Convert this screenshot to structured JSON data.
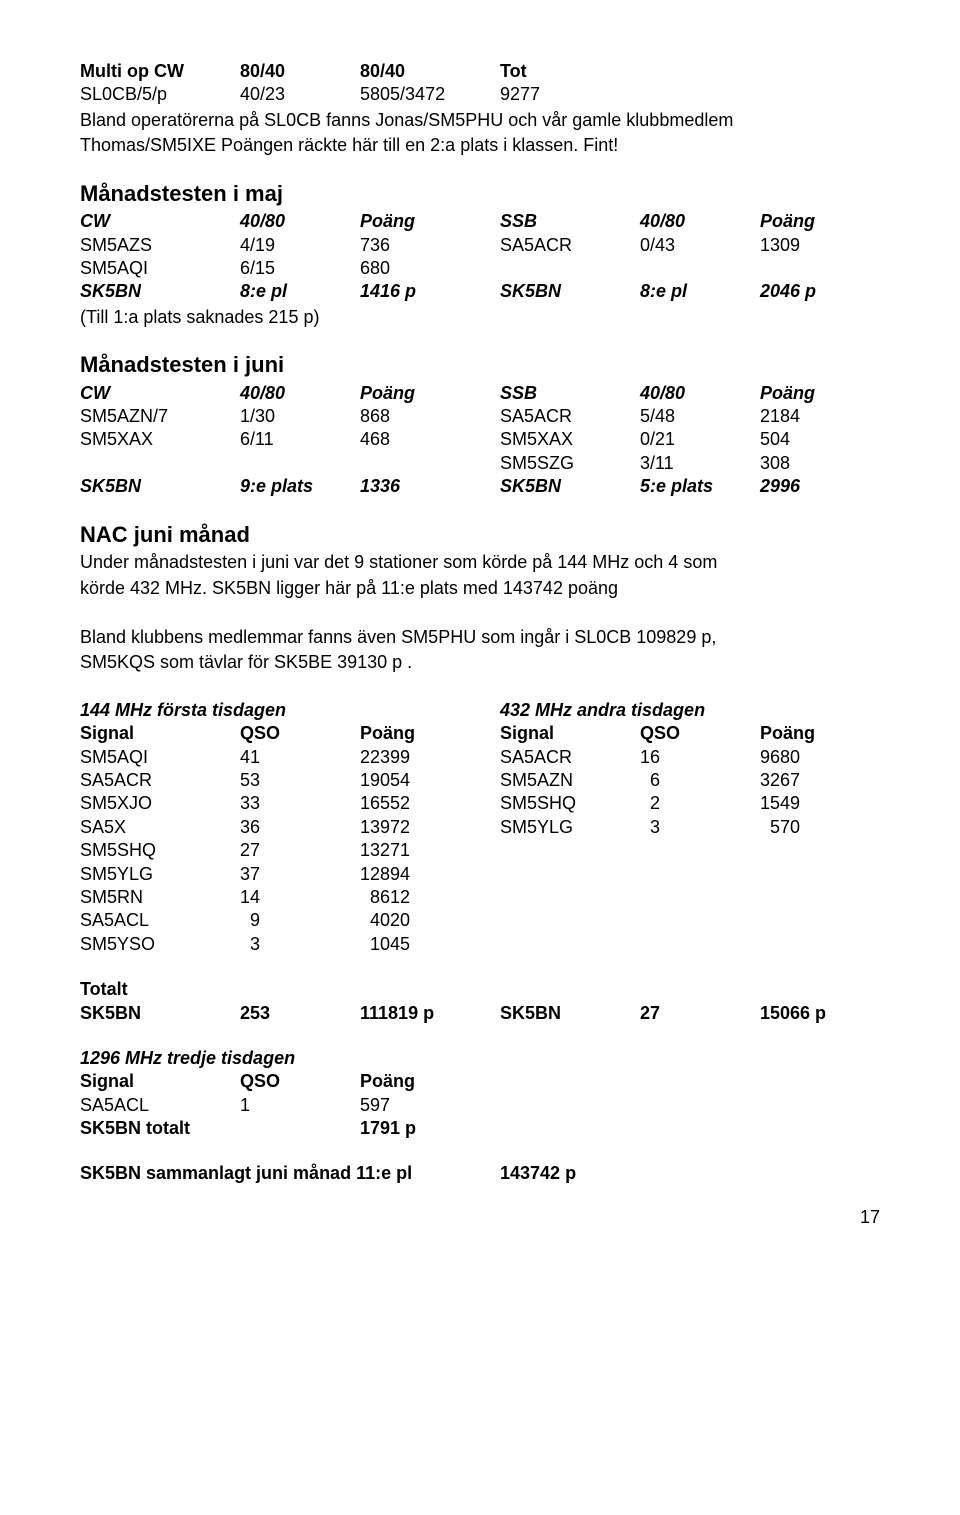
{
  "topHeader": {
    "a": "Multi op CW",
    "b": "80/40",
    "c": "80/40",
    "d": "Tot"
  },
  "topRow": {
    "a": "SL0CB/5/p",
    "b": "40/23",
    "c": "5805/3472",
    "d": "9277"
  },
  "intro1": "Bland operatörerna på SL0CB fanns Jonas/SM5PHU och vår gamle klubbmedlem",
  "intro2": "Thomas/SM5IXE Poängen räckte här till en 2:a plats i klassen. Fint!",
  "maj": {
    "title": "Månadstesten i maj",
    "hdr": {
      "a": "CW",
      "b": "40/80",
      "c": "Poäng",
      "d": "SSB",
      "e": "40/80",
      "f": "Poäng"
    },
    "r1": {
      "a": "SM5AZS",
      "b": "4/19",
      "c": "736",
      "d": "SA5ACR",
      "e": "0/43",
      "f": "1309"
    },
    "r2": {
      "a": "SM5AQI",
      "b": "6/15",
      "c": "680"
    },
    "r3": {
      "a": "SK5BN",
      "b": "8:e pl",
      "c": "1416 p",
      "d": "SK5BN",
      "e": "8:e pl",
      "f": "2046 p"
    },
    "note": "(Till 1:a plats saknades 215 p)"
  },
  "juni": {
    "title": "Månadstesten i juni",
    "hdr": {
      "a": "CW",
      "b": "40/80",
      "c": "Poäng",
      "d": "SSB",
      "e": "40/80",
      "f": "Poäng"
    },
    "r1": {
      "a": "SM5AZN/7",
      "b": "1/30",
      "c": "868",
      "d": "SA5ACR",
      "e": "5/48",
      "f": "2184"
    },
    "r2": {
      "a": "SM5XAX",
      "b": "6/11",
      "c": "468",
      "d": "SM5XAX",
      "e": "0/21",
      "f": "504"
    },
    "r3": {
      "d": "SM5SZG",
      "e": "3/11",
      "f": "308"
    },
    "r4": {
      "a": "SK5BN",
      "b": "9:e plats",
      "c": "1336",
      "d": "SK5BN",
      "e": "5:e plats",
      "f": "2996"
    }
  },
  "nac": {
    "title": "NAC juni månad",
    "p1": "Under månadstesten i juni var det 9 stationer som körde på 144 MHz och 4 som",
    "p2": "körde 432 MHz. SK5BN ligger här på 11:e plats med 143742 poäng",
    "p3": "Bland klubbens medlemmar fanns även SM5PHU som ingår i SL0CB 109829 p,",
    "p4": "SM5KQS som tävlar för SK5BE 39130 p ."
  },
  "mhz144": {
    "title": "144 MHz första tisdagen",
    "hdr": {
      "a": "Signal",
      "b": "QSO",
      "c": "Poäng"
    },
    "rows": [
      {
        "a": "SM5AQI",
        "b": "41",
        "c": "22399"
      },
      {
        "a": "SA5ACR",
        "b": "53",
        "c": "19054"
      },
      {
        "a": "SM5XJO",
        "b": "33",
        "c": "16552"
      },
      {
        "a": "SA5X",
        "b": "36",
        "c": "13972"
      },
      {
        "a": "SM5SHQ",
        "b": "27",
        "c": "13271"
      },
      {
        "a": "SM5YLG",
        "b": "37",
        "c": "12894"
      },
      {
        "a": "SM5RN",
        "b": "14",
        "c": "  8612"
      },
      {
        "a": "SA5ACL",
        "b": "  9",
        "c": "  4020"
      },
      {
        "a": "SM5YSO",
        "b": "  3",
        "c": "  1045"
      }
    ]
  },
  "mhz432": {
    "title": "432 MHz andra tisdagen",
    "hdr": {
      "a": "Signal",
      "b": "QSO",
      "c": "Poäng"
    },
    "rows": [
      {
        "a": "SA5ACR",
        "b": "16",
        "c": "9680"
      },
      {
        "a": "SM5AZN",
        "b": "  6",
        "c": "3267"
      },
      {
        "a": "SM5SHQ",
        "b": "  2",
        "c": "1549"
      },
      {
        "a": "SM5YLG",
        "b": "  3",
        "c": "  570"
      }
    ]
  },
  "totalt": {
    "label": "Totalt",
    "left": {
      "a": "SK5BN",
      "b": "253",
      "c": "111819 p"
    },
    "right": {
      "a": "SK5BN",
      "b": "27",
      "c": "15066 p"
    }
  },
  "mhz1296": {
    "title": "1296 MHz tredje tisdagen",
    "hdr": {
      "a": "Signal",
      "b": "QSO",
      "c": "Poäng"
    },
    "row": {
      "a": "SA5ACL",
      "b": "1",
      "c": "597"
    },
    "tot": {
      "a": "SK5BN totalt",
      "c": "1791 p"
    }
  },
  "summary": {
    "a": "SK5BN sammanlagt juni månad  11:e pl",
    "c": "143742 p"
  },
  "pageNumber": "17"
}
